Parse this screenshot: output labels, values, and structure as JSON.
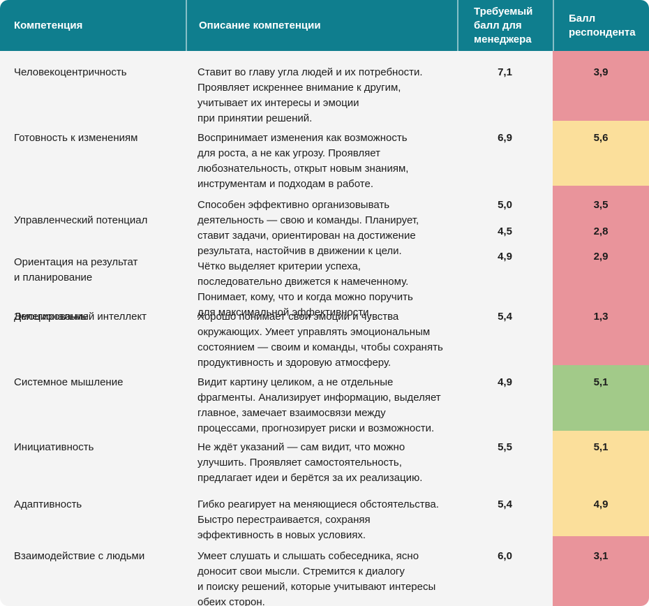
{
  "colors": {
    "header": "#0f7e8e",
    "status_low": "#e9949b",
    "status_mid": "#fbdf9b",
    "status_high": "#a2ca89",
    "body_background": "#f4f4f4",
    "header_text": "#ffffff",
    "body_text": "#1c1c1c"
  },
  "table": {
    "columns": [
      {
        "label": "Компетенция"
      },
      {
        "label": "Описание компетенции"
      },
      {
        "label": "Требуемый\nбалл для\nменеджера"
      },
      {
        "label": "Балл\nреспондента"
      }
    ],
    "rows": [
      {
        "items": [
          {
            "name": "Человекоцентричность",
            "required": "7,1",
            "respondent": "3,9"
          }
        ],
        "description": "Ставит во главу угла людей и их потребности.\nПроявляет искреннее внимание к другим,\nучитывает их интересы и эмоции\nпри принятии решений.",
        "status": "low",
        "score_color": "#e9949b"
      },
      {
        "items": [
          {
            "name": "Готовность к изменениям",
            "required": "6,9",
            "respondent": "5,6"
          }
        ],
        "description": "Воспринимает изменения как возможность\nдля роста, а не как угрозу. Проявляет\nлюбознательность, открыт новым знаниям,\nинструментам и подходам в работе.",
        "status": "mid",
        "score_color": "#fbdf9b"
      },
      {
        "items": [
          {
            "name": "Управленческий потенциал",
            "required": "5,0",
            "respondent": "3,5"
          },
          {
            "name": "Ориентация на результат\nи планирование",
            "required": "4,5",
            "respondent": "2,8"
          },
          {
            "name": "Делегирование",
            "required": "4,9",
            "respondent": "2,9"
          }
        ],
        "description": "Способен эффективно организовывать\nдеятельность — свою и команды. Планирует,\nставит задачи, ориентирован на достижение\nрезультата, настойчив в движении к цели.\nЧётко выделяет критерии успеха,\nпоследовательно движется к намеченному.\nПонимает, кому, что и когда можно поручить\nдля максимальной эффективности.",
        "status": "low",
        "score_color": "#e9949b"
      },
      {
        "items": [
          {
            "name": "Эмоциональный интеллект",
            "required": "5,4",
            "respondent": "1,3"
          }
        ],
        "description": "Хорошо понимает свои эмоции и чувства\nокружающих. Умеет управлять эмоциональным\nсостоянием — своим и команды, чтобы сохранять\nпродуктивность и здоровую атмосферу.",
        "status": "low",
        "score_color": "#e9949b"
      },
      {
        "items": [
          {
            "name": "Системное мышление",
            "required": "4,9",
            "respondent": "5,1"
          }
        ],
        "description": "Видит картину целиком, а не отдельные\nфрагменты. Анализирует информацию, выделяет\nглавное, замечает взаимосвязи между\nпроцессами, прогнозирует риски и возможности.",
        "status": "high",
        "score_color": "#a2ca89"
      },
      {
        "items": [
          {
            "name": "Инициативность",
            "required": "5,5",
            "respondent": "5,1"
          }
        ],
        "description": "Не ждёт указаний — сам видит, что можно\nулучшить. Проявляет самостоятельность,\nпредлагает идеи и берётся за их реализацию.",
        "status": "mid",
        "score_color": "#fbdf9b"
      },
      {
        "items": [
          {
            "name": "Адаптивность",
            "required": "5,4",
            "respondent": "4,9"
          }
        ],
        "description": "Гибко реагирует на меняющиеся обстоятельства.\nБыстро перестраивается, сохраняя\nэффективность в новых условиях.",
        "status": "mid",
        "score_color": "#fbdf9b"
      },
      {
        "items": [
          {
            "name": "Взаимодействие с людьми",
            "required": "6,0",
            "respondent": "3,1"
          }
        ],
        "description": "Умеет слушать и слышать собеседника, ясно\nдоносит свои мысли. Стремится к диалогу\nи поиску решений, которые учитывают интересы\nобеих сторон.",
        "status": "low",
        "score_color": "#e9949b"
      }
    ]
  }
}
